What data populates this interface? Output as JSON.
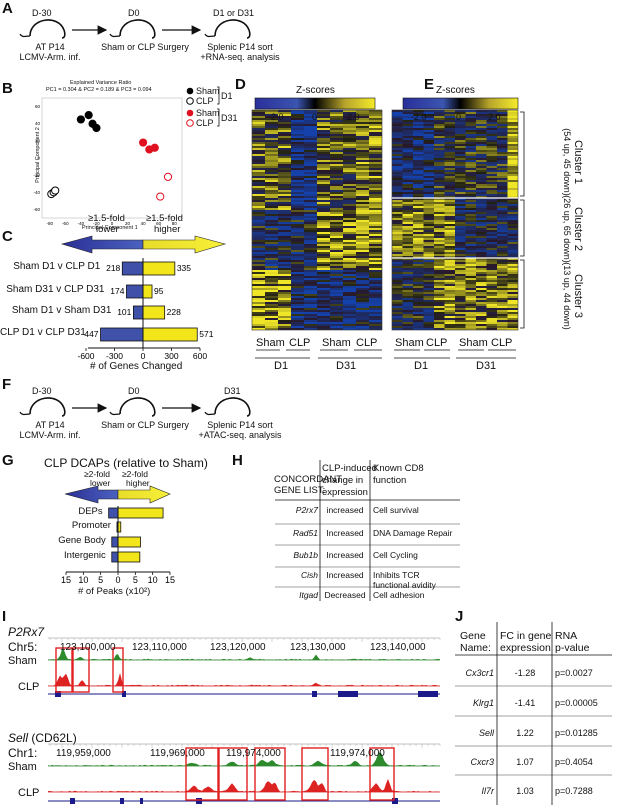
{
  "panel_labels": [
    "A",
    "B",
    "C",
    "D",
    "E",
    "F",
    "G",
    "H",
    "I",
    "J"
  ],
  "panelA": {
    "steps": [
      {
        "day": "D-30",
        "lines": [
          "AT P14",
          "LCMV-Arm. inf."
        ]
      },
      {
        "day": "D0",
        "lines": [
          "Sham or CLP Surgery"
        ]
      },
      {
        "day": "D1 or D31",
        "lines": [
          "Splenic P14 sort",
          "+RNA-seq. analysis"
        ]
      }
    ]
  },
  "panelB": {
    "title": "Explained Variance Ratio",
    "subtitle": "PC1 = 0.304  &  PC2 = 0.189  &  PC3 = 0.094",
    "xlabel": "Principal Component 1",
    "ylabel": "Principal Component 2",
    "xticks": [
      "-80",
      "-60",
      "-40",
      "-20",
      "0",
      "20",
      "40",
      "60",
      "80"
    ],
    "yticks": [
      "60",
      "40",
      "20",
      "0",
      "-20",
      "-40",
      "-60"
    ],
    "legend": [
      {
        "label": "Sham",
        "group": "D1"
      },
      {
        "label": "CLP",
        "group": "D1"
      },
      {
        "label": "Sham",
        "group": "D31"
      },
      {
        "label": "CLP",
        "group": "D31"
      }
    ],
    "legend_groups": [
      "D1",
      "D31"
    ]
  },
  "panelC": {
    "lower_label": [
      "≥1.5-fold",
      "lower"
    ],
    "higher_label": [
      "≥1.5-fold",
      "higher"
    ],
    "xlabel": "# of Genes Changed",
    "xticks": [
      "-600",
      "-300",
      "0",
      "300",
      "600"
    ]
  },
  "heatmaps": {
    "zscore_title": "Z-scores",
    "zscore_ticks": [
      "-2.0",
      "0",
      "2.0"
    ],
    "D_groups": [
      "Sham",
      "CLP",
      "Sham",
      "CLP"
    ],
    "D_days": [
      "D1",
      "D31"
    ],
    "E_groups": [
      "Sham",
      "CLP",
      "Sham",
      "CLP"
    ],
    "E_days": [
      "D1",
      "D31"
    ],
    "clusters": [
      {
        "name": "Cluster 1",
        "detail": "(54 up, 45 down)"
      },
      {
        "name": "Cluster 2",
        "detail": "(26 up, 65 down)"
      },
      {
        "name": "Cluster 3",
        "detail": "(13 up, 44 down)"
      }
    ]
  },
  "panelF": {
    "steps": [
      {
        "day": "D-30",
        "lines": [
          "AT P14",
          "LCMV-Arm. inf."
        ]
      },
      {
        "day": "D0",
        "lines": [
          "Sham or CLP Surgery"
        ]
      },
      {
        "day": "D31",
        "lines": [
          "Splenic P14 sort",
          "+ATAC-seq. analysis"
        ]
      }
    ]
  },
  "panelG": {
    "title": "CLP DCAPs (relative to Sham)",
    "lower_label": [
      "≥2-fold",
      "lower"
    ],
    "higher_label": [
      "≥2-fold",
      "higher"
    ],
    "xlabel": "# of Peaks (x10²)",
    "xticks": [
      "15",
      "10",
      "5",
      "0",
      "5",
      "10",
      "15"
    ]
  },
  "panelH": {
    "headers": [
      "CONCORDANT\nGENE LIST:",
      "CLP-induced\nchange in\nexpression",
      "Known CD8\nfunction"
    ],
    "rows": [
      [
        "P2rx7",
        "increased",
        "Cell survival"
      ],
      [
        "Rad51",
        "Increased",
        "DNA Damage Repair"
      ],
      [
        "Bub1b",
        "Increased",
        "Cell Cycling"
      ],
      [
        "Cish",
        "Increased",
        "Inhibits TCR\nfunctional avidity"
      ],
      [
        "Itgad",
        "Decreased",
        "Cell adhesion"
      ]
    ]
  },
  "panelI": {
    "track1": {
      "gene": "P2Rx7",
      "chr": "Chr5:",
      "coords": [
        "123,100,000",
        "123,110,000",
        "123,120,000",
        "123,130,000",
        "123,140,000"
      ],
      "rows": [
        "Sham",
        "CLP"
      ]
    },
    "track2": {
      "gene": "Sell",
      "gene_note": "(CD62L)",
      "chr": "Chr1:",
      "coords": [
        "119,959,000",
        "119,969,000",
        "119,974,000",
        "119,974,000"
      ],
      "rows": [
        "Sham",
        "CLP"
      ]
    }
  },
  "panelJ": {
    "headers": [
      "Gene\nName:",
      "FC in gene\nexpression",
      "RNA\np-value"
    ],
    "rows": [
      [
        "Cx3cr1",
        "-1.28",
        "p=0.0027"
      ],
      [
        "Klrg1",
        "-1.41",
        "p=0.00005"
      ],
      [
        "Sell",
        "1.22",
        "p=0.01285"
      ],
      [
        "Cxcr3",
        "1.07",
        "p=0.4054"
      ],
      [
        "Il7r",
        "1.03",
        "p=0.7288"
      ]
    ]
  },
  "chart_data": [
    {
      "type": "scatter",
      "title": "Explained Variance Ratio",
      "xlabel": "Principal Component 1",
      "ylabel": "Principal Component 2",
      "xlim": [
        -90,
        90
      ],
      "ylim": [
        -70,
        70
      ],
      "series": [
        {
          "name": "Sham D1",
          "color": "#000000",
          "filled": true,
          "points": [
            [
              -40,
              45
            ],
            [
              -30,
              50
            ],
            [
              -25,
              40
            ],
            [
              -20,
              35
            ]
          ]
        },
        {
          "name": "CLP D1",
          "color": "#000000",
          "filled": false,
          "points": [
            [
              -78,
              -42
            ],
            [
              -75,
              -40
            ],
            [
              -73,
              -38
            ]
          ]
        },
        {
          "name": "Sham D31",
          "color": "#e01020",
          "filled": true,
          "points": [
            [
              40,
              18
            ],
            [
              48,
              10
            ],
            [
              55,
              12
            ]
          ]
        },
        {
          "name": "CLP D31",
          "color": "#e01020",
          "filled": false,
          "points": [
            [
              72,
              -22
            ],
            [
              62,
              -45
            ]
          ]
        }
      ]
    },
    {
      "type": "bar",
      "orientation": "horizontal",
      "xlabel": "# of Genes Changed",
      "xlim": [
        -600,
        600
      ],
      "categories": [
        "Sham D1 v CLP D1",
        "Sham D31 v CLP D31",
        "Sham D1 v Sham D31",
        "CLP D1 v CLP D31"
      ],
      "lower": [
        -218,
        -174,
        -101,
        -447
      ],
      "higher": [
        335,
        95,
        228,
        571
      ],
      "lower_labels": [
        "218",
        "174",
        "101",
        "447"
      ],
      "higher_labels": [
        "335",
        "95",
        "228",
        "571"
      ],
      "colors": {
        "lower": "#3f51a8",
        "higher": "#f2e61a"
      }
    },
    {
      "type": "bar",
      "orientation": "horizontal",
      "title": "CLP DCAPs (relative to Sham)",
      "xlabel": "# of Peaks (x10²)",
      "xlim": [
        -15,
        15
      ],
      "categories": [
        "DEPs",
        "Promoter",
        "Gene Body",
        "Intergenic"
      ],
      "lower": [
        -2.7,
        -0.3,
        -1.8,
        -1.8
      ],
      "higher": [
        13,
        0.8,
        6.5,
        6.3
      ],
      "colors": {
        "lower": "#3f51a8",
        "higher": "#f2e61a"
      }
    }
  ]
}
